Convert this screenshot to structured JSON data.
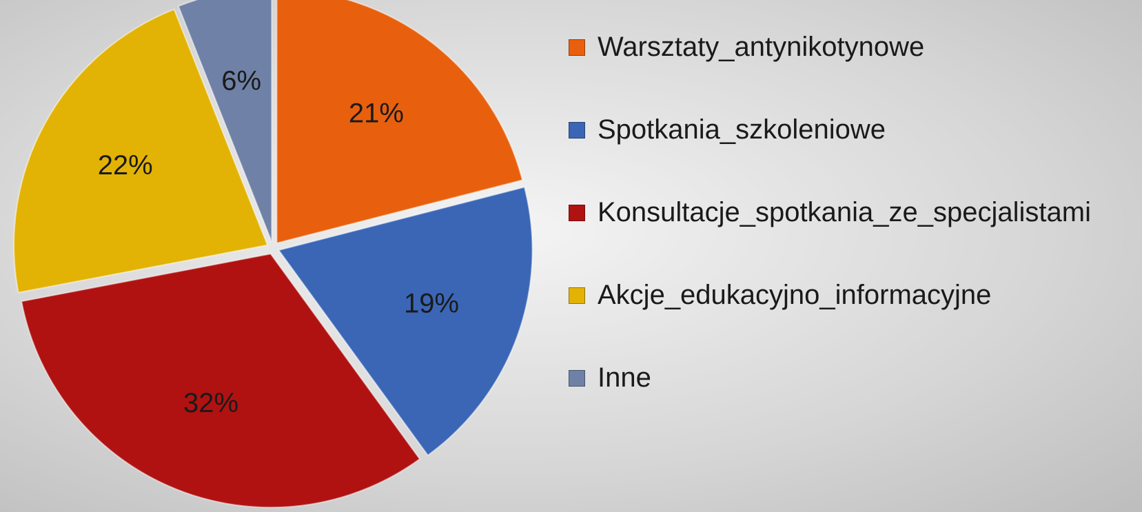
{
  "chart_data": {
    "type": "pie",
    "categories": [
      "Warsztaty_antynikotynowe",
      "Spotkania_szkoleniowe",
      "Konsultacje_spotkania_ze_specjalistami",
      "Akcje_edukacyjno_informacyjne",
      "Inne"
    ],
    "values": [
      21,
      19,
      32,
      22,
      6
    ],
    "value_labels": [
      "21%",
      "19%",
      "32%",
      "22%",
      "6%"
    ],
    "colors": [
      "#e8600e",
      "#3b66b6",
      "#b01212",
      "#e2b304",
      "#6f81a6"
    ],
    "legend": "right"
  }
}
